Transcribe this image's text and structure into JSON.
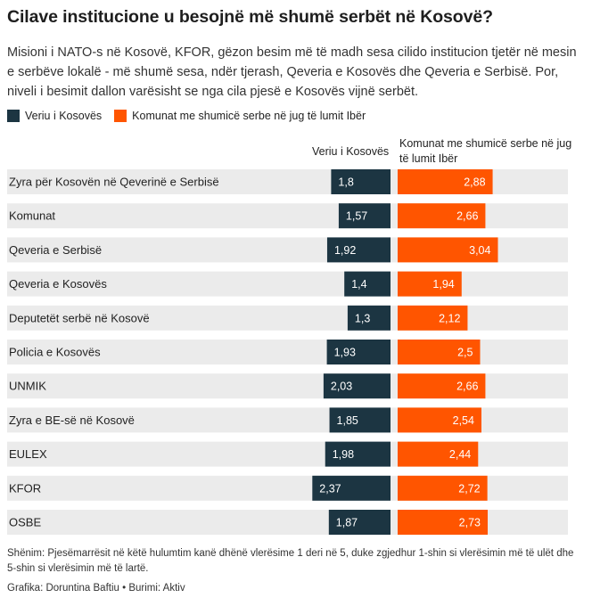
{
  "title": "Cilave institucione u besojnë më shumë serbët në Kosovë?",
  "subtitle": "Misioni i NATO-s në Kosovë, KFOR, gëzon besim më të madh sesa cilido institucion tjetër në mesin e serbëve lokalë - më shumë sesa, ndër tjerash, Qeveria e Kosovës dhe Qeveria e Serbisë. Por, niveli i besimit dallon varësisht se nga cila pjesë e Kosovës vijnë serbët.",
  "colors": {
    "north": "#1c3542",
    "south": "#ff5500",
    "track": "#ebebeb"
  },
  "chart_data": {
    "type": "bar",
    "categories": [
      "Zyra për Kosovën në Qeverinë e Serbisë",
      "Komunat",
      "Qeveria e Serbisë",
      "Qeveria e Kosovës",
      "Deputetët serbë në Kosovë",
      "Policia e Kosovës",
      "UNMIK",
      "Zyra e BE-së në Kosovë",
      "EULEX",
      "KFOR",
      "OSBE"
    ],
    "series": [
      {
        "name": "Veriu i Kosovës",
        "values": [
          1.8,
          1.57,
          1.92,
          1.4,
          1.3,
          1.93,
          2.03,
          1.85,
          1.98,
          2.37,
          1.87
        ],
        "value_labels": [
          "1,8",
          "1,57",
          "1,92",
          "1,4",
          "1,3",
          "1,93",
          "2,03",
          "1,85",
          "1,98",
          "2,37",
          "1,87"
        ]
      },
      {
        "name": "Komunat me shumicë serbe në jug të lumit Ibër",
        "values": [
          2.88,
          2.66,
          3.04,
          1.94,
          2.12,
          2.5,
          2.66,
          2.54,
          2.44,
          2.72,
          2.73
        ],
        "value_labels": [
          "2,88",
          "2,66",
          "3,04",
          "1,94",
          "2,12",
          "2,5",
          "2,66",
          "2,54",
          "2,44",
          "2,72",
          "2,73"
        ]
      }
    ],
    "column_headers": [
      "Veriu i Kosovës",
      "Komunat me shumicë serbe në jug të lumit Ibër"
    ],
    "xlim": [
      0,
      5
    ],
    "legend_position": "top-left",
    "grid": false
  },
  "note": "Shënim: Pjesëmarrësit në këtë hulumtim kanë dhënë vlerësime 1 deri në 5, duke zgjedhur 1-shin si vlerësimin më të ulët dhe 5-shin si vlerësimin më të lartë.",
  "credit": "Grafika: Doruntina Baftiu • Burimi: Aktiv"
}
